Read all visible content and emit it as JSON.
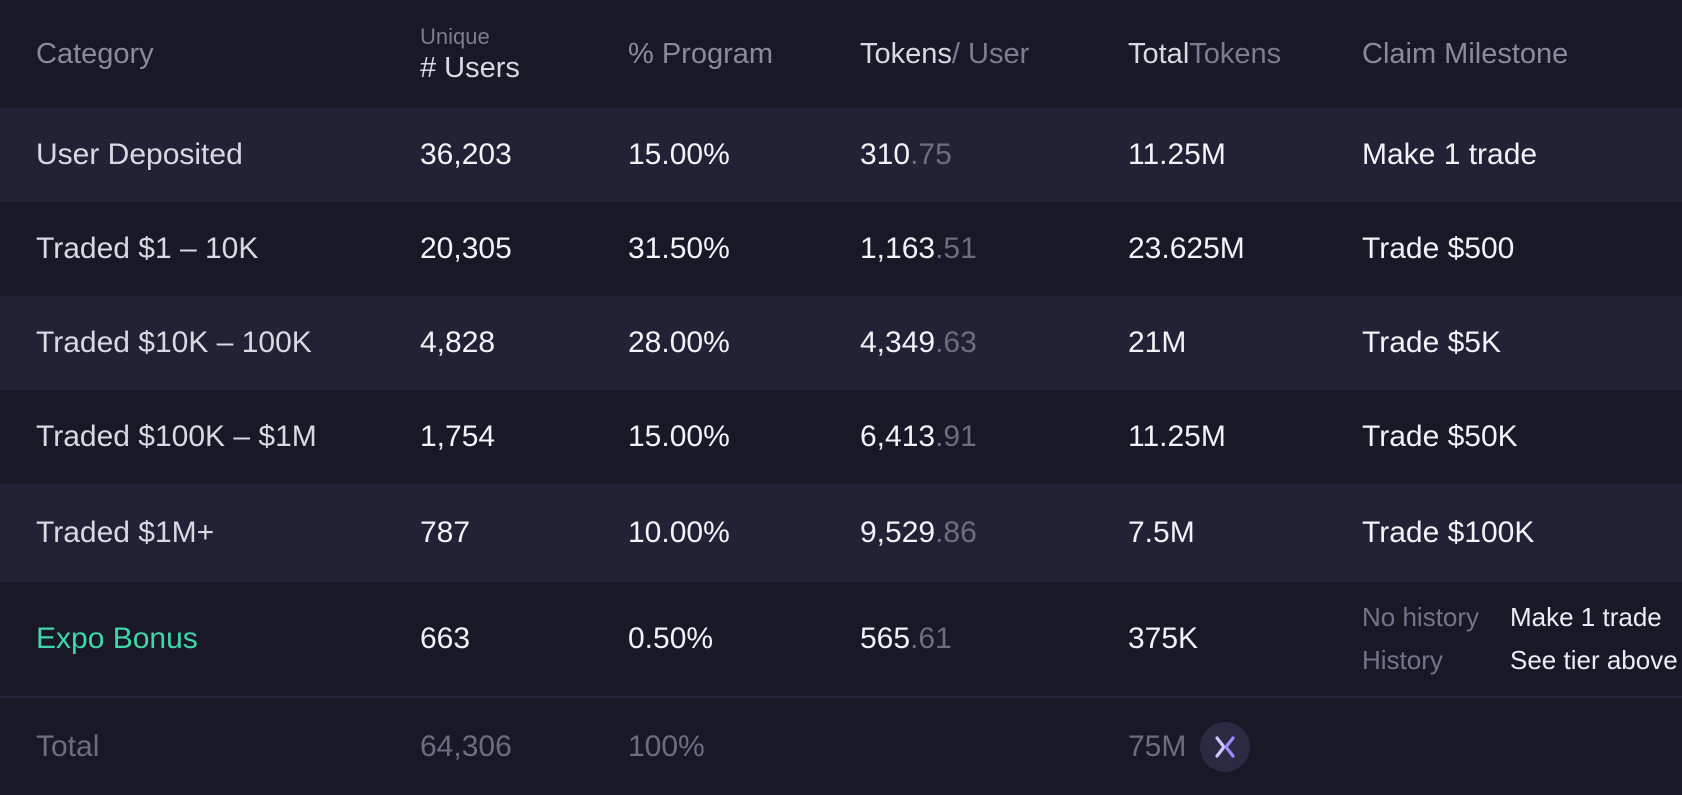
{
  "header": {
    "category": "Category",
    "users_top": "Unique",
    "users_bottom": "# Users",
    "program": "% Program",
    "tokens_user_a": "Tokens",
    "tokens_user_b": " / User",
    "total_tokens_a": "Total",
    "total_tokens_b": " Tokens",
    "milestone": "Claim Milestone"
  },
  "rows": [
    {
      "category": "User Deposited",
      "users": "36,203",
      "program": "15.00%",
      "tokens_int": "310",
      "tokens_frac": ".75",
      "total": "11.25M",
      "milestone": "Make 1 trade"
    },
    {
      "category": "Traded $1 – 10K",
      "users": "20,305",
      "program": "31.50%",
      "tokens_int": "1,163",
      "tokens_frac": ".51",
      "total": "23.625M",
      "milestone": "Trade $500"
    },
    {
      "category": "Traded $10K – 100K",
      "users": "4,828",
      "program": "28.00%",
      "tokens_int": "4,349",
      "tokens_frac": ".63",
      "total": "21M",
      "milestone": "Trade $5K"
    },
    {
      "category": "Traded $100K – $1M",
      "users": "1,754",
      "program": "15.00%",
      "tokens_int": "6,413",
      "tokens_frac": ".91",
      "total": "11.25M",
      "milestone": "Trade $50K"
    },
    {
      "category": "Traded $1M+",
      "users": "787",
      "program": "10.00%",
      "tokens_int": "9,529",
      "tokens_frac": ".86",
      "total": "7.5M",
      "milestone": "Trade $100K"
    }
  ],
  "expo": {
    "category": "Expo Bonus",
    "users": "663",
    "program": "0.50%",
    "tokens_int": "565",
    "tokens_frac": ".61",
    "total": "375K",
    "milestone_lines": [
      {
        "label": "No history",
        "value": "Make 1 trade"
      },
      {
        "label": "History",
        "value": "See tier above"
      }
    ]
  },
  "total": {
    "label": "Total",
    "users": "64,306",
    "program": "100%",
    "tokens": "75M"
  },
  "icons": {
    "total_badge": "x-logo-icon"
  },
  "colors": {
    "background": "#181827",
    "band": "#222236",
    "accent_green": "#3ed7a6"
  }
}
